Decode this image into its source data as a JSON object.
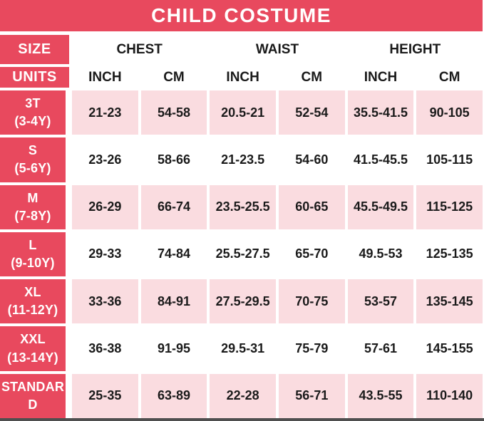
{
  "title": "CHILD COSTUME",
  "colors": {
    "red": "#E8495E",
    "pink": "#FADCE0",
    "text": "#1A1A1A",
    "white": "#FFFFFF",
    "bottom_border": "#4F4F4F"
  },
  "table": {
    "size_header": "SIZE",
    "units_header": "UNITS",
    "groups": [
      {
        "label": "CHEST"
      },
      {
        "label": "WAIST"
      },
      {
        "label": "HEIGHT"
      }
    ],
    "unit_labels": [
      "INCH",
      "CM",
      "INCH",
      "CM",
      "INCH",
      "CM"
    ],
    "rows": [
      {
        "size": "3T",
        "age": "(3-4Y)",
        "values": [
          "21-23",
          "54-58",
          "20.5-21",
          "52-54",
          "35.5-41.5",
          "90-105"
        ]
      },
      {
        "size": "S",
        "age": "(5-6Y)",
        "values": [
          "23-26",
          "58-66",
          "21-23.5",
          "54-60",
          "41.5-45.5",
          "105-115"
        ]
      },
      {
        "size": "M",
        "age": "(7-8Y)",
        "values": [
          "26-29",
          "66-74",
          "23.5-25.5",
          "60-65",
          "45.5-49.5",
          "115-125"
        ]
      },
      {
        "size": "L",
        "age": "(9-10Y)",
        "values": [
          "29-33",
          "74-84",
          "25.5-27.5",
          "65-70",
          "49.5-53",
          "125-135"
        ]
      },
      {
        "size": "XL",
        "age": "(11-12Y)",
        "values": [
          "33-36",
          "84-91",
          "27.5-29.5",
          "70-75",
          "53-57",
          "135-145"
        ]
      },
      {
        "size": "XXL",
        "age": "(13-14Y)",
        "values": [
          "36-38",
          "91-95",
          "29.5-31",
          "75-79",
          "57-61",
          "145-155"
        ]
      },
      {
        "size": "STANDARD",
        "age": "",
        "values": [
          "25-35",
          "63-89",
          "22-28",
          "56-71",
          "43.5-55",
          "110-140"
        ]
      }
    ]
  },
  "chart_data": {
    "type": "table",
    "title": "CHILD COSTUME",
    "columns": [
      "SIZE",
      "CHEST INCH",
      "CHEST CM",
      "WAIST INCH",
      "WAIST CM",
      "HEIGHT INCH",
      "HEIGHT CM"
    ],
    "rows": [
      [
        "3T (3-4Y)",
        "21-23",
        "54-58",
        "20.5-21",
        "52-54",
        "35.5-41.5",
        "90-105"
      ],
      [
        "S (5-6Y)",
        "23-26",
        "58-66",
        "21-23.5",
        "54-60",
        "41.5-45.5",
        "105-115"
      ],
      [
        "M (7-8Y)",
        "26-29",
        "66-74",
        "23.5-25.5",
        "60-65",
        "45.5-49.5",
        "115-125"
      ],
      [
        "L (9-10Y)",
        "29-33",
        "74-84",
        "25.5-27.5",
        "65-70",
        "49.5-53",
        "125-135"
      ],
      [
        "XL (11-12Y)",
        "33-36",
        "84-91",
        "27.5-29.5",
        "70-75",
        "53-57",
        "135-145"
      ],
      [
        "XXL (13-14Y)",
        "36-38",
        "91-95",
        "29.5-31",
        "75-79",
        "57-61",
        "145-155"
      ],
      [
        "STANDARD",
        "25-35",
        "63-89",
        "22-28",
        "56-71",
        "43.5-55",
        "110-140"
      ]
    ]
  }
}
